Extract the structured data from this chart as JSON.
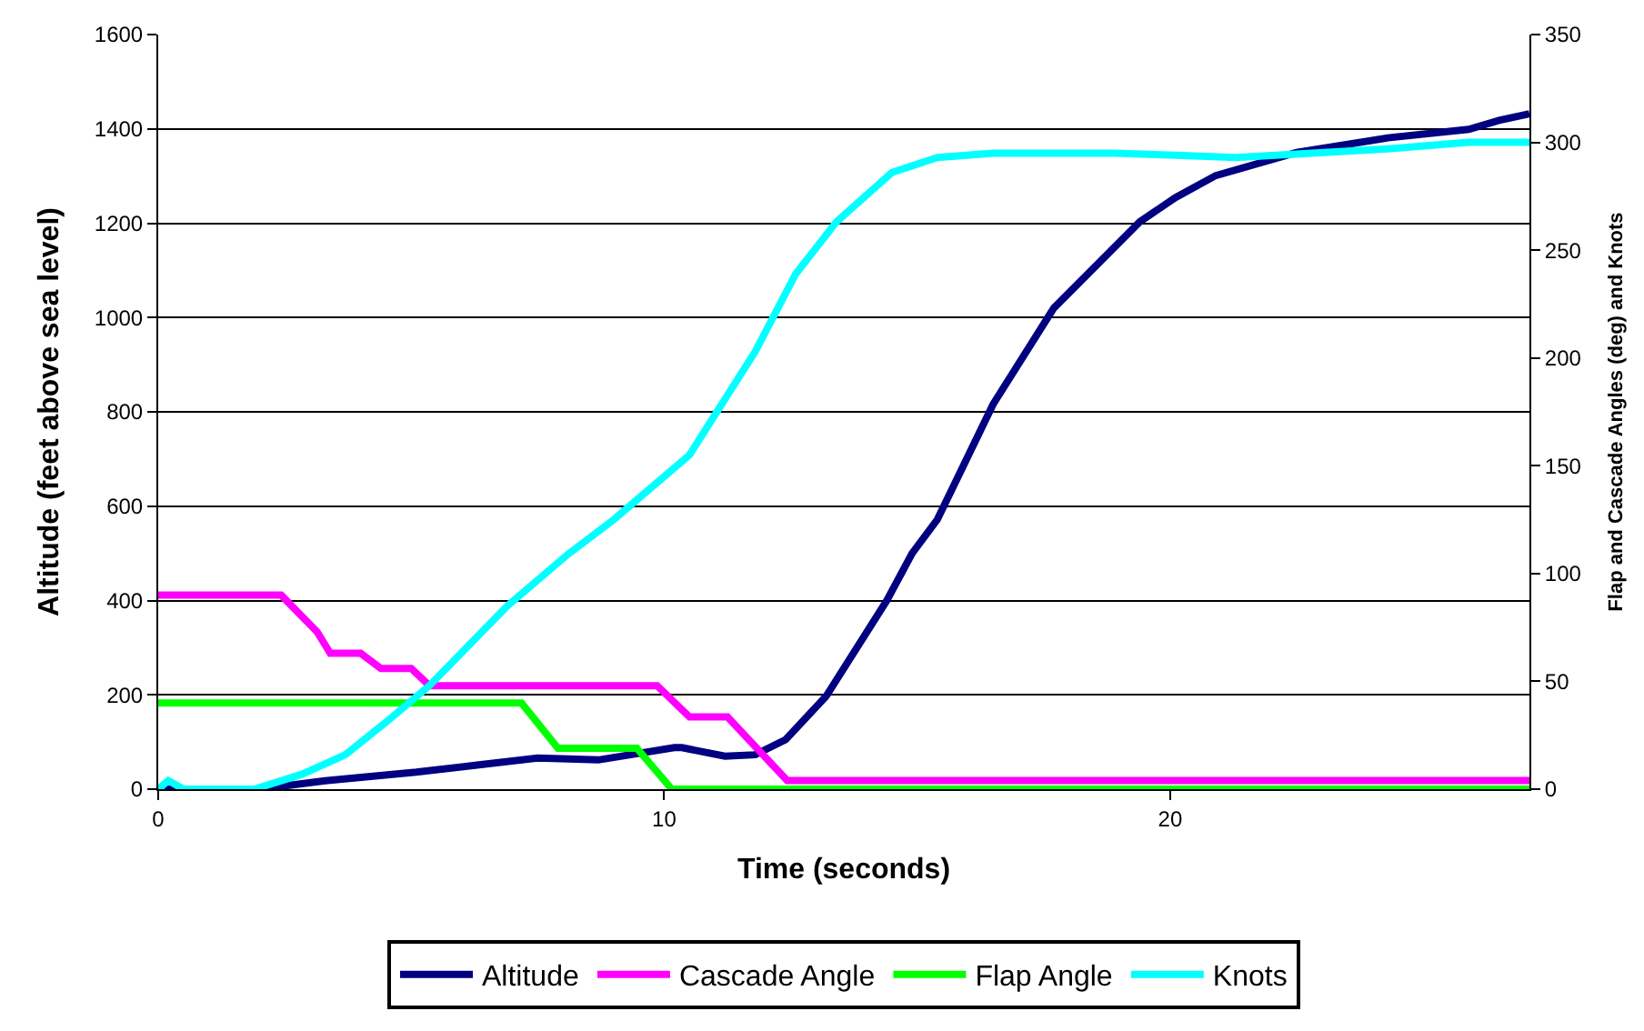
{
  "chart_data": {
    "type": "line",
    "xlabel": "Time (seconds)",
    "ylabel": "Altitude (feet above sea level)",
    "y2label": "Flap and Cascade Angles (deg) and Knots",
    "xlim": [
      0,
      27.1
    ],
    "xticks": [
      0,
      10,
      20
    ],
    "ylim": [
      0,
      1600
    ],
    "yticks": [
      0,
      200,
      400,
      600,
      800,
      1000,
      1200,
      1400,
      1600
    ],
    "y2lim": [
      0,
      350
    ],
    "y2ticks": [
      0,
      50,
      100,
      150,
      200,
      250,
      300,
      350
    ],
    "grid": "y",
    "legend": "bottom",
    "marker": "none",
    "line_style": "solid",
    "series": [
      {
        "name": "Altitude",
        "color": "#000080",
        "x": [
          0,
          2.0,
          3.3,
          5.1,
          6.3,
          7.5,
          8.7,
          10.2,
          10.35,
          11.2,
          11.8,
          12.4,
          13.2,
          14.4,
          14.9,
          15.4,
          16.5,
          17.7,
          19.4,
          20.1,
          20.9,
          22.5,
          24.3,
          25.9,
          26.5,
          27.1
        ],
        "values": [
          0,
          0,
          18,
          36,
          51,
          66,
          62,
          88,
          88,
          70,
          73,
          105,
          197,
          400,
          500,
          572,
          816,
          1020,
          1203,
          1254,
          1301,
          1350,
          1381,
          1399,
          1418,
          1432
        ]
      },
      {
        "name": "Cascade Angle",
        "color": "#ff00ff",
        "axis": "y2",
        "x": [
          0,
          2.43,
          3.14,
          3.4,
          4.0,
          4.4,
          5.0,
          5.36,
          9.86,
          10.5,
          11.25,
          12.43,
          27.1
        ],
        "values": [
          90,
          90,
          73,
          63,
          63,
          56,
          56,
          48,
          48,
          33.5,
          33.5,
          4,
          4
        ]
      },
      {
        "name": "Flap Angle",
        "color": "#00ff00",
        "axis": "y2",
        "x": [
          0,
          7.18,
          7.9,
          9.46,
          10.15,
          27.1
        ],
        "values": [
          40,
          40,
          19,
          19,
          0,
          0
        ]
      },
      {
        "name": "Knots",
        "color": "#00ffff",
        "axis": "y2",
        "x": [
          0,
          0.2,
          0.5,
          1.9,
          2.85,
          3.7,
          4.5,
          5.36,
          6.9,
          8.1,
          9.0,
          9.4,
          10.5,
          11.8,
          12.6,
          13.4,
          14.5,
          15.4,
          16.5,
          18.9,
          20.1,
          21.3,
          24.3,
          25.9,
          27.1
        ],
        "values": [
          0,
          4,
          0,
          0,
          7,
          16,
          31,
          48,
          85,
          109,
          125,
          133,
          155,
          203,
          239,
          263,
          286,
          293,
          295,
          295,
          294,
          293,
          297,
          300,
          300
        ]
      }
    ]
  }
}
